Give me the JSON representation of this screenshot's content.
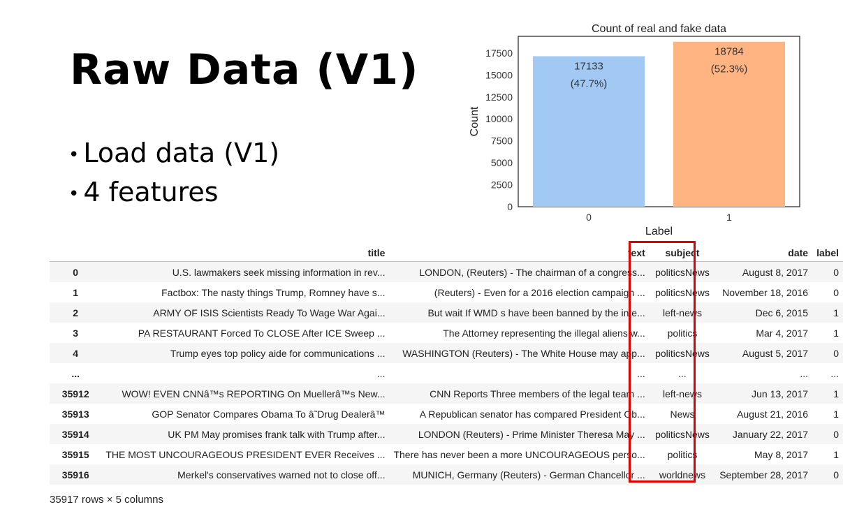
{
  "slide": {
    "title": "Raw Data (V1)",
    "bullets": [
      "Load data (V1)",
      "4 features"
    ]
  },
  "chart_data": {
    "type": "bar",
    "title": "Count of real and fake data",
    "xlabel": "Label",
    "ylabel": "Count",
    "categories": [
      "0",
      "1"
    ],
    "values": [
      17133,
      18784
    ],
    "data_labels": [
      {
        "count": "17133",
        "pct": "(47.7%)"
      },
      {
        "count": "18784",
        "pct": "(52.3%)"
      }
    ],
    "bar_colors": [
      "#a1c9f4",
      "#ffb482"
    ],
    "yticks": [
      0,
      2500,
      5000,
      7500,
      10000,
      12500,
      15000,
      17500
    ],
    "ylim": [
      0,
      19400
    ],
    "grid": false
  },
  "table": {
    "columns": [
      "title",
      "text",
      "subject",
      "date",
      "label"
    ],
    "rows": [
      {
        "idx": "0",
        "title": "U.S. lawmakers seek missing information in rev...",
        "text": "LONDON, (Reuters) - The chairman of a congress...",
        "subject": "politicsNews",
        "date": "August 8, 2017",
        "label": "0"
      },
      {
        "idx": "1",
        "title": "Factbox: The nasty things Trump, Romney have s...",
        "text": "(Reuters) - Even for a 2016 election campaign ...",
        "subject": "politicsNews",
        "date": "November 18, 2016",
        "label": "0"
      },
      {
        "idx": "2",
        "title": "ARMY OF ISIS Scientists Ready To Wage War Agai...",
        "text": "But wait If WMD s have been banned by the inte...",
        "subject": "left-news",
        "date": "Dec 6, 2015",
        "label": "1"
      },
      {
        "idx": "3",
        "title": "PA RESTAURANT Forced To CLOSE After ICE Sweep ...",
        "text": "The Attorney representing the illegal aliens w...",
        "subject": "politics",
        "date": "Mar 4, 2017",
        "label": "1"
      },
      {
        "idx": "4",
        "title": "Trump eyes top policy aide for communications ...",
        "text": "WASHINGTON (Reuters) - The White House may app...",
        "subject": "politicsNews",
        "date": "August 5, 2017",
        "label": "0"
      },
      {
        "idx": "...",
        "title": "...",
        "text": "...",
        "subject": "...",
        "date": "...",
        "label": "..."
      },
      {
        "idx": "35912",
        "title": "WOW! EVEN CNNâ™s REPORTING On Muellerâ™s New...",
        "text": "CNN Reports Three members of the legal team ...",
        "subject": "left-news",
        "date": "Jun 13, 2017",
        "label": "1"
      },
      {
        "idx": "35913",
        "title": "GOP Senator Compares Obama To â˜Drug Dealerâ™",
        "text": "A Republican senator has compared President Ob...",
        "subject": "News",
        "date": "August 21, 2016",
        "label": "1"
      },
      {
        "idx": "35914",
        "title": "UK PM May promises frank talk with Trump after...",
        "text": "LONDON (Reuters) - Prime Minister Theresa May ...",
        "subject": "politicsNews",
        "date": "January 22, 2017",
        "label": "0"
      },
      {
        "idx": "35915",
        "title": "THE MOST UNCOURAGEOUS PRESIDENT EVER Receives ...",
        "text": "There has never been a more UNCOURAGEOUS perso...",
        "subject": "politics",
        "date": "May 8, 2017",
        "label": "1"
      },
      {
        "idx": "35916",
        "title": "Merkel's conservatives warned not to close off...",
        "text": "MUNICH, Germany (Reuters) - German Chancellor ...",
        "subject": "worldnews",
        "date": "September 28, 2017",
        "label": "0"
      }
    ],
    "shape_caption": "35917 rows × 5 columns",
    "highlight_color": "#e00000"
  }
}
